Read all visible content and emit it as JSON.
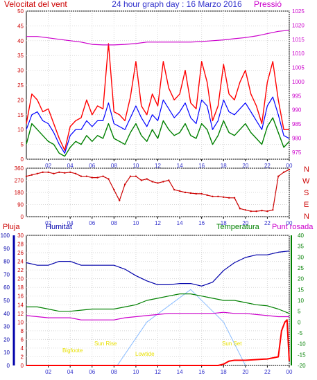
{
  "header": {
    "wind_label": "Velocitat del vent",
    "title": "24 hour graph day : 16 Marzo 2016",
    "pressure_label": "Pressió"
  },
  "panel_labels": {
    "rain": "Pluja",
    "humidity": "Humitat",
    "temperature": "Temperatura",
    "dewpoint": "Punt rosada"
  },
  "compass": [
    "N",
    "W",
    "S",
    "E",
    "N"
  ],
  "annotations": {
    "sun_rise": "Sun Rise",
    "sun_set": "Sun Set",
    "bigfoot": "Bigfoote",
    "lowtide": "Lowtide"
  },
  "colors": {
    "wind_gust": "#ff0000",
    "wind_avg": "#0000ff",
    "wind_speed": "#008000",
    "pressure": "#cc00cc",
    "direction": "#cc0000",
    "humidity": "#0000aa",
    "temperature": "#008000",
    "dewpoint": "#cc00cc",
    "rain": "#ff0000",
    "solar": "#88bbff",
    "annotation": "#e8e000"
  },
  "chart_data": [
    {
      "type": "line",
      "name": "wind_pressure",
      "x_ticks": [
        "02",
        "04",
        "06",
        "08",
        "10",
        "12",
        "14",
        "16",
        "18",
        "20",
        "22",
        "00"
      ],
      "xlim": [
        0,
        24
      ],
      "y_left_ticks": [
        "0",
        "5",
        "10",
        "15",
        "20",
        "25",
        "30",
        "35",
        "40",
        "45",
        "50"
      ],
      "ylim_left": [
        0,
        50
      ],
      "y_right_ticks": [
        "975",
        "980",
        "985",
        "990",
        "995",
        "1000",
        "1005",
        "1010",
        "1015",
        "1020",
        "1025"
      ],
      "ylim_right": [
        972.5,
        1025
      ],
      "series": [
        {
          "key": "gust",
          "axis": "left",
          "x": [
            0,
            0.5,
            1,
            1.5,
            2,
            2.5,
            3,
            3.5,
            4,
            4.5,
            5,
            5.5,
            6,
            6.5,
            7,
            7.5,
            8,
            8.5,
            9,
            9.5,
            10,
            10.5,
            11,
            11.5,
            12,
            12.5,
            13,
            13.5,
            14,
            14.5,
            15,
            15.5,
            16,
            16.5,
            17,
            17.5,
            18,
            18.5,
            19,
            19.5,
            20,
            20.5,
            21,
            21.5,
            22,
            22.5,
            23,
            23.5,
            24
          ],
          "y": [
            12,
            22,
            20,
            16,
            17,
            12,
            7,
            3,
            11,
            13,
            14,
            20,
            15,
            18,
            17,
            39,
            16,
            15,
            13,
            21,
            33,
            18,
            15,
            22,
            18,
            33,
            24,
            20,
            22,
            30,
            19,
            17,
            33,
            26,
            13,
            18,
            32,
            22,
            20,
            26,
            30,
            22,
            18,
            12,
            26,
            33,
            20,
            10,
            10
          ]
        },
        {
          "key": "avg",
          "axis": "left",
          "x": [
            0,
            0.5,
            1,
            1.5,
            2,
            2.5,
            3,
            3.5,
            4,
            4.5,
            5,
            5.5,
            6,
            6.5,
            7,
            7.5,
            8,
            8.5,
            9,
            9.5,
            10,
            10.5,
            11,
            11.5,
            12,
            12.5,
            13,
            13.5,
            14,
            14.5,
            15,
            15.5,
            16,
            16.5,
            17,
            17.5,
            18,
            18.5,
            19,
            19.5,
            20,
            20.5,
            21,
            21.5,
            22,
            22.5,
            23,
            23.5,
            24
          ],
          "y": [
            10,
            15,
            16,
            13,
            12,
            9,
            5,
            2,
            8,
            10,
            10,
            13,
            11,
            13,
            13,
            19,
            12,
            11,
            10,
            14,
            18,
            14,
            11,
            15,
            13,
            20,
            17,
            14,
            16,
            19,
            14,
            12,
            20,
            18,
            10,
            13,
            20,
            16,
            15,
            17,
            19,
            16,
            13,
            10,
            18,
            21,
            15,
            8,
            7
          ]
        },
        {
          "key": "speed",
          "axis": "left",
          "x": [
            0,
            0.5,
            1,
            1.5,
            2,
            2.5,
            3,
            3.5,
            4,
            4.5,
            5,
            5.5,
            6,
            6.5,
            7,
            7.5,
            8,
            8.5,
            9,
            9.5,
            10,
            10.5,
            11,
            11.5,
            12,
            12.5,
            13,
            13.5,
            14,
            14.5,
            15,
            15.5,
            16,
            16.5,
            17,
            17.5,
            18,
            18.5,
            19,
            19.5,
            20,
            20.5,
            21,
            21.5,
            22,
            22.5,
            23,
            23.5,
            24
          ],
          "y": [
            5,
            12,
            10,
            8,
            6,
            5,
            2,
            1,
            4,
            6,
            5,
            8,
            6,
            8,
            7,
            12,
            7,
            6,
            5,
            9,
            12,
            8,
            6,
            10,
            7,
            13,
            10,
            8,
            9,
            12,
            8,
            7,
            12,
            10,
            5,
            8,
            13,
            9,
            8,
            10,
            12,
            9,
            7,
            5,
            11,
            14,
            9,
            4,
            6
          ]
        },
        {
          "key": "pressure",
          "axis": "right",
          "x": [
            0,
            1,
            2,
            3,
            4,
            5,
            6,
            7,
            8,
            9,
            10,
            11,
            12,
            13,
            14,
            15,
            16,
            17,
            18,
            19,
            20,
            21,
            22,
            23,
            24
          ],
          "y": [
            1016,
            1016,
            1015.5,
            1015,
            1014.5,
            1014,
            1013.2,
            1013,
            1013,
            1013.2,
            1013.5,
            1014,
            1014,
            1014,
            1014,
            1014,
            1014.2,
            1014.5,
            1014.8,
            1015.2,
            1015.6,
            1016.2,
            1017,
            1017.8,
            1018.2
          ]
        }
      ]
    },
    {
      "type": "scatter",
      "name": "wind_direction",
      "x_ticks": [
        "02",
        "04",
        "06",
        "08",
        "10",
        "12",
        "14",
        "16",
        "18",
        "20",
        "22",
        "00"
      ],
      "y_ticks": [
        "360",
        "270",
        "180",
        "90",
        "0"
      ],
      "ylim": [
        0,
        360
      ],
      "series": [
        {
          "key": "direction",
          "x": [
            0,
            0.5,
            1,
            1.5,
            2,
            2.5,
            3,
            3.5,
            4,
            4.5,
            5,
            5.5,
            6,
            6.5,
            7,
            7.5,
            8,
            8.5,
            9,
            9.5,
            10,
            10.5,
            11,
            11.5,
            12,
            12.5,
            13,
            13.5,
            14,
            14.5,
            15,
            15.5,
            16,
            16.5,
            17,
            17.5,
            18,
            18.5,
            19,
            19.5,
            20,
            20.5,
            21,
            21.5,
            22,
            22.5,
            23,
            23.5,
            24
          ],
          "y": [
            300,
            310,
            320,
            330,
            330,
            320,
            330,
            325,
            330,
            320,
            300,
            300,
            290,
            290,
            300,
            280,
            200,
            120,
            240,
            300,
            300,
            270,
            280,
            260,
            250,
            260,
            270,
            200,
            190,
            180,
            175,
            170,
            170,
            160,
            150,
            150,
            145,
            140,
            140,
            60,
            50,
            40,
            40,
            45,
            40,
            50,
            300,
            330,
            350
          ]
        }
      ]
    },
    {
      "type": "line",
      "name": "humidity_temperature",
      "x_ticks": [
        "02",
        "04",
        "06",
        "08",
        "10",
        "12",
        "14",
        "16",
        "18",
        "20",
        "22",
        "00"
      ],
      "rain_ticks": [
        "0",
        "2",
        "4",
        "6",
        "8",
        "10",
        "12",
        "14",
        "16",
        "18",
        "20",
        "22",
        "24",
        "26",
        "28",
        "30"
      ],
      "humidity_ticks": [
        "0",
        "10",
        "20",
        "30",
        "40",
        "50",
        "60",
        "70",
        "80",
        "90",
        "100"
      ],
      "temperature_ticks": [
        "-20",
        "-15",
        "-10",
        "-5",
        "0",
        "5",
        "10",
        "15",
        "20",
        "25",
        "30",
        "35",
        "40"
      ],
      "ylim_rain": [
        0,
        30
      ],
      "ylim_humidity": [
        0,
        100
      ],
      "ylim_temperature": [
        -20,
        40
      ],
      "series": [
        {
          "key": "humidity",
          "axis": "humidity",
          "x": [
            0,
            1,
            2,
            3,
            4,
            5,
            6,
            7,
            8,
            9,
            10,
            11,
            12,
            13,
            14,
            15,
            16,
            17,
            18,
            19,
            20,
            21,
            22,
            23,
            24
          ],
          "y": [
            79,
            77,
            77,
            80,
            80,
            77,
            77,
            77,
            77,
            74,
            69,
            65,
            62,
            62,
            63,
            63,
            61,
            64,
            73,
            79,
            83,
            85,
            85,
            87,
            88
          ]
        },
        {
          "key": "temperature",
          "axis": "temperature",
          "x": [
            0,
            1,
            2,
            3,
            4,
            5,
            6,
            7,
            8,
            9,
            10,
            11,
            12,
            13,
            14,
            15,
            16,
            17,
            18,
            19,
            20,
            21,
            22,
            23,
            24
          ],
          "y": [
            7,
            7,
            6,
            5,
            5,
            5.5,
            6,
            6,
            6,
            7,
            8,
            10,
            11,
            12,
            13,
            13,
            12,
            11,
            10,
            10,
            9,
            8,
            7.5,
            6,
            4
          ]
        },
        {
          "key": "dewpoint",
          "axis": "temperature",
          "x": [
            0,
            1,
            2,
            3,
            4,
            5,
            6,
            7,
            8,
            9,
            10,
            11,
            12,
            13,
            14,
            15,
            16,
            17,
            18,
            19,
            20,
            21,
            22,
            23,
            24
          ],
          "y": [
            3,
            2.5,
            2,
            2,
            2,
            1,
            1,
            1,
            1,
            2,
            2.5,
            3,
            3.5,
            4,
            4,
            4,
            4,
            4,
            4.5,
            4,
            4,
            3.5,
            3,
            2.5,
            2.5
          ]
        },
        {
          "key": "solar",
          "axis": "temperature",
          "x": [
            8.3,
            11,
            15,
            18,
            20
          ],
          "y": [
            -20,
            0,
            15,
            0,
            -20
          ]
        },
        {
          "key": "rain",
          "axis": "rain",
          "x": [
            0,
            17.5,
            18,
            18.5,
            19,
            19.5,
            20,
            22,
            23,
            23.3,
            23.6,
            23.8,
            24
          ],
          "y": [
            0,
            0,
            0.3,
            1,
            1.2,
            1.2,
            1.2,
            1.5,
            2,
            8,
            10,
            10.5,
            1
          ]
        }
      ]
    }
  ]
}
